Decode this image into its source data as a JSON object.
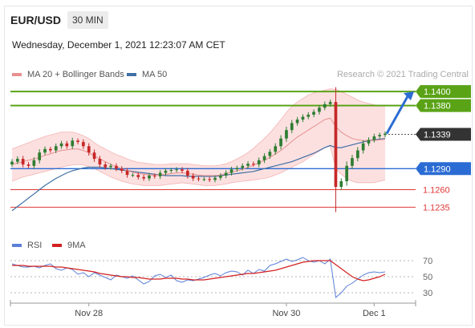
{
  "header": {
    "symbol": "EUR/USD",
    "timeframe": "30 MIN",
    "timestamp": "Wednesday, December 1, 2021 12:23:07 AM CET",
    "credit": "Research © 2021 Trading Central"
  },
  "colors": {
    "candle_up": "#2e7d32",
    "candle_down": "#c62828",
    "ma20": "#e88f8f",
    "band_fill": "#fbd5d5",
    "ma50": "#3f6fa5",
    "resistance": "#5aa317",
    "support_red": "#e03838",
    "pivot_blue": "#2b6cd4",
    "current": "#333333",
    "rsi": "#5b7fd8",
    "rsi9": "#d32020"
  },
  "chart_data": [
    {
      "type": "candlestick",
      "symbol": "EUR/USD",
      "timeframe": "30 MIN",
      "x_ticks": [
        "Nov 28",
        "Nov 30",
        "Dec 1"
      ],
      "ylim": [
        1.1216,
        1.1415
      ],
      "series": [
        {
          "name": "MA 20 + Bollinger Bands"
        },
        {
          "name": "MA 50"
        }
      ],
      "levels": [
        {
          "label": "1.1400",
          "value": 1.14,
          "kind": "resistance"
        },
        {
          "label": "1.1380",
          "value": 1.138,
          "kind": "resistance"
        },
        {
          "label": "1.1339",
          "value": 1.1339,
          "kind": "current"
        },
        {
          "label": "1.1290",
          "value": 1.129,
          "kind": "pivot"
        },
        {
          "label": "1.1260",
          "value": 1.126,
          "kind": "support"
        },
        {
          "label": "1.1235",
          "value": 1.1235,
          "kind": "support"
        }
      ],
      "price": [
        1.13,
        1.1304,
        1.1296,
        1.1294,
        1.1302,
        1.1313,
        1.1318,
        1.1316,
        1.1322,
        1.1326,
        1.1322,
        1.133,
        1.1328,
        1.1322,
        1.1313,
        1.1304,
        1.1296,
        1.1292,
        1.1294,
        1.129,
        1.1287,
        1.1281,
        1.1281,
        1.1278,
        1.1276,
        1.128,
        1.1279,
        1.1284,
        1.1287,
        1.1288,
        1.1289,
        1.1287,
        1.128,
        1.1276,
        1.1275,
        1.1275,
        1.1274,
        1.1277,
        1.128,
        1.1284,
        1.1289,
        1.1291,
        1.1294,
        1.1297,
        1.1296,
        1.1302,
        1.1308,
        1.1314,
        1.1322,
        1.1333,
        1.1345,
        1.1355,
        1.136,
        1.1364,
        1.1367,
        1.1371,
        1.1377,
        1.1382,
        1.1385,
        1.1264,
        1.1272,
        1.1294,
        1.1305,
        1.1316,
        1.1326,
        1.1331,
        1.1336,
        1.1338,
        1.134
      ],
      "ma20": [
        1.1296,
        1.1298,
        1.13,
        1.1302,
        1.1304,
        1.1306,
        1.1309,
        1.1311,
        1.1314,
        1.1316,
        1.1317,
        1.1318,
        1.1318,
        1.1316,
        1.1313,
        1.1308,
        1.1304,
        1.13,
        1.1296,
        1.1293,
        1.129,
        1.1287,
        1.1285,
        1.1283,
        1.1282,
        1.1281,
        1.1281,
        1.1281,
        1.1282,
        1.1283,
        1.1284,
        1.1284,
        1.1283,
        1.1282,
        1.1281,
        1.128,
        1.128,
        1.128,
        1.1281,
        1.1283,
        1.1285,
        1.1287,
        1.1289,
        1.1292,
        1.1295,
        1.1298,
        1.1302,
        1.1306,
        1.1311,
        1.1316,
        1.1322,
        1.1329,
        1.1335,
        1.134,
        1.1345,
        1.135,
        1.1355,
        1.136,
        1.1362,
        1.135,
        1.1342,
        1.1337,
        1.1333,
        1.1331,
        1.133,
        1.133,
        1.133,
        1.1331,
        1.1332
      ],
      "bb_upper": [
        1.1318,
        1.1321,
        1.1324,
        1.1327,
        1.133,
        1.1333,
        1.1336,
        1.1338,
        1.134,
        1.1342,
        1.1342,
        1.1342,
        1.134,
        1.1337,
        1.1333,
        1.1327,
        1.1322,
        1.1318,
        1.1314,
        1.131,
        1.1307,
        1.1304,
        1.1301,
        1.1299,
        1.1298,
        1.1297,
        1.1296,
        1.1296,
        1.1296,
        1.1297,
        1.1297,
        1.1297,
        1.1297,
        1.1296,
        1.1295,
        1.1294,
        1.1294,
        1.1294,
        1.1295,
        1.1297,
        1.13,
        1.1304,
        1.1308,
        1.1313,
        1.1319,
        1.1326,
        1.1333,
        1.1341,
        1.135,
        1.136,
        1.137,
        1.1379,
        1.1385,
        1.139,
        1.1395,
        1.1398,
        1.14,
        1.1402,
        1.1404,
        1.1403,
        1.14,
        1.1396,
        1.1392,
        1.1388,
        1.1385,
        1.1383,
        1.1381,
        1.138,
        1.1379
      ],
      "bb_lower": [
        1.1272,
        1.1275,
        1.1278,
        1.128,
        1.1282,
        1.1284,
        1.1286,
        1.1288,
        1.129,
        1.1292,
        1.1294,
        1.1295,
        1.1296,
        1.1295,
        1.1293,
        1.129,
        1.1286,
        1.1282,
        1.1278,
        1.1275,
        1.1272,
        1.127,
        1.1268,
        1.1267,
        1.1266,
        1.1266,
        1.1266,
        1.1266,
        1.1267,
        1.1268,
        1.1269,
        1.127,
        1.1269,
        1.1268,
        1.1267,
        1.1266,
        1.1266,
        1.1266,
        1.1267,
        1.1268,
        1.127,
        1.1271,
        1.1272,
        1.1273,
        1.1274,
        1.1275,
        1.1276,
        1.1278,
        1.1281,
        1.1284,
        1.1288,
        1.1292,
        1.1296,
        1.13,
        1.1305,
        1.131,
        1.1315,
        1.132,
        1.1322,
        1.129,
        1.1282,
        1.1276,
        1.1272,
        1.127,
        1.127,
        1.127,
        1.127,
        1.1272,
        1.1274
      ],
      "ma50": [
        1.123,
        1.1236,
        1.1242,
        1.1248,
        1.1254,
        1.126,
        1.1266,
        1.1271,
        1.1276,
        1.128,
        1.1284,
        1.1287,
        1.1289,
        1.1291,
        1.1292,
        1.1292,
        1.1292,
        1.1291,
        1.129,
        1.1289,
        1.1288,
        1.1287,
        1.1286,
        1.1285,
        1.1284,
        1.1283,
        1.1282,
        1.1281,
        1.128,
        1.128,
        1.128,
        1.128,
        1.1279,
        1.1279,
        1.1279,
        1.1279,
        1.1279,
        1.1279,
        1.128,
        1.1281,
        1.1282,
        1.1283,
        1.1284,
        1.1285,
        1.1286,
        1.1288,
        1.129,
        1.1292,
        1.1294,
        1.1296,
        1.1298,
        1.13,
        1.1303,
        1.1306,
        1.1309,
        1.1312,
        1.1316,
        1.132,
        1.1323,
        1.132,
        1.132,
        1.1322,
        1.1324,
        1.1326,
        1.1328,
        1.133,
        1.1331,
        1.1332,
        1.1333
      ]
    },
    {
      "type": "line",
      "indicator": "RSI",
      "series": [
        {
          "name": "RSI",
          "values": [
            66,
            64,
            62,
            62,
            63,
            61,
            64,
            66,
            60,
            58,
            61,
            59,
            53,
            55,
            50,
            55,
            52,
            49,
            46,
            52,
            50,
            48,
            51,
            46,
            41,
            44,
            51,
            53,
            49,
            52,
            45,
            43,
            46,
            45,
            47,
            49,
            52,
            54,
            51,
            55,
            57,
            56,
            52,
            58,
            54,
            59,
            57,
            64,
            66,
            69,
            72,
            69,
            71,
            74,
            70,
            68,
            70,
            66,
            72,
            24,
            30,
            38,
            42,
            47,
            52,
            55,
            56,
            55,
            56
          ]
        },
        {
          "name": "9MA",
          "values": [
            64,
            64,
            64,
            63,
            63,
            63,
            63,
            63,
            62,
            62,
            61,
            60,
            59,
            58,
            57,
            56,
            54,
            53,
            52,
            51,
            50,
            50,
            49,
            49,
            48,
            47,
            47,
            47,
            48,
            48,
            48,
            47,
            47,
            46,
            46,
            46,
            47,
            48,
            49,
            50,
            51,
            52,
            53,
            54,
            54,
            55,
            56,
            57,
            58,
            60,
            62,
            64,
            66,
            68,
            69,
            70,
            70,
            70,
            70,
            65,
            60,
            55,
            50,
            47,
            45,
            46,
            48,
            50,
            53
          ]
        }
      ],
      "ylim": [
        20,
        80
      ],
      "reference_levels": [
        70,
        50,
        30
      ]
    }
  ]
}
